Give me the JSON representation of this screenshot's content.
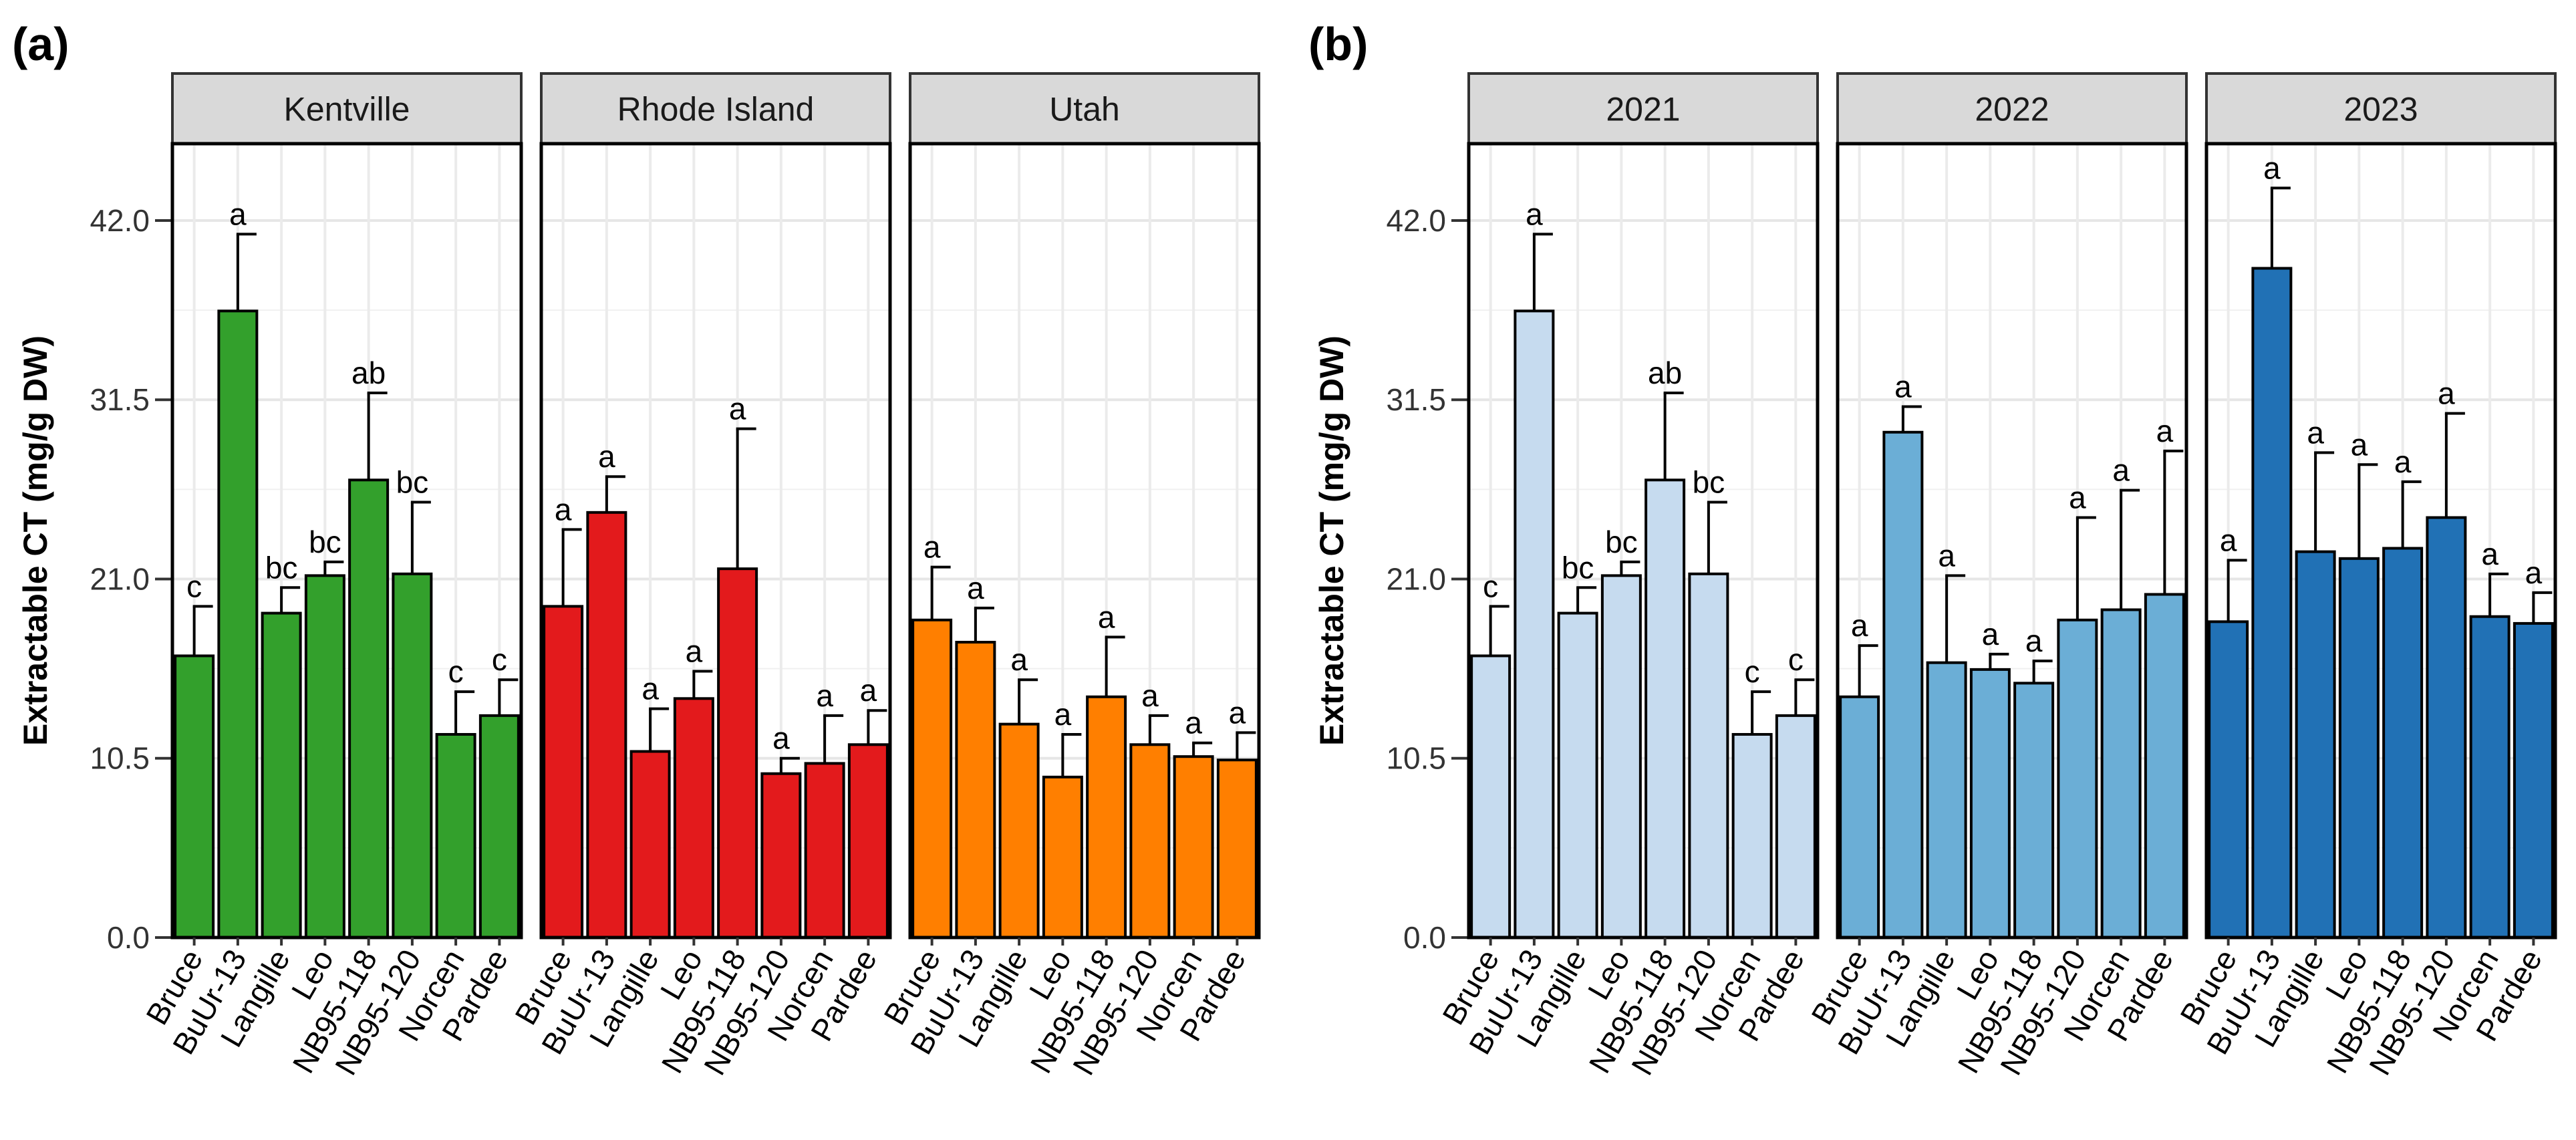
{
  "chart_data": [
    {
      "type": "bar",
      "panel_label": "(a)",
      "ylabel": "Extractable CT (mg/g DW)",
      "ylim": [
        0,
        46.5
      ],
      "yticks": [
        "0.0",
        "10.5",
        "21.0",
        "31.5",
        "42.0"
      ],
      "categories": [
        "Bruce",
        "BuUr-13",
        "Langille",
        "Leo",
        "NB95-118",
        "NB95-120",
        "Norcen",
        "Pardee"
      ],
      "facets": [
        {
          "title": "Kentville",
          "color": "#33a02c",
          "values": [
            16.5,
            36.7,
            19.0,
            21.2,
            26.8,
            21.3,
            11.9,
            13.0
          ],
          "errors": [
            2.9,
            4.5,
            1.5,
            0.8,
            5.1,
            4.2,
            2.5,
            2.1
          ],
          "letters": [
            "c",
            "a",
            "bc",
            "bc",
            "ab",
            "bc",
            "c",
            "c"
          ]
        },
        {
          "title": "Rhode Island",
          "color": "#e31a1c",
          "values": [
            19.4,
            24.9,
            10.9,
            14.0,
            21.6,
            9.6,
            10.2,
            11.3
          ],
          "errors": [
            4.5,
            2.1,
            2.5,
            1.6,
            8.2,
            0.9,
            2.8,
            2.0
          ],
          "letters": [
            "a",
            "a",
            "a",
            "a",
            "a",
            "a",
            "a",
            "a"
          ]
        },
        {
          "title": "Utah",
          "color": "#ff7f00",
          "values": [
            18.6,
            17.3,
            12.5,
            9.4,
            14.1,
            11.3,
            10.6,
            10.4
          ],
          "errors": [
            3.1,
            2.0,
            2.6,
            2.5,
            3.5,
            1.7,
            0.8,
            1.6
          ],
          "letters": [
            "a",
            "a",
            "a",
            "a",
            "a",
            "a",
            "a",
            "a"
          ]
        }
      ]
    },
    {
      "type": "bar",
      "panel_label": "(b)",
      "ylabel": "Extractable CT (mg/g DW)",
      "ylim": [
        0,
        46.5
      ],
      "yticks": [
        "0.0",
        "10.5",
        "21.0",
        "31.5",
        "42.0"
      ],
      "categories": [
        "Bruce",
        "BuUr-13",
        "Langille",
        "Leo",
        "NB95-118",
        "NB95-120",
        "Norcen",
        "Pardee"
      ],
      "facets": [
        {
          "title": "2021",
          "color": "#c6dbef",
          "values": [
            16.5,
            36.7,
            19.0,
            21.2,
            26.8,
            21.3,
            11.9,
            13.0
          ],
          "errors": [
            2.9,
            4.5,
            1.5,
            0.8,
            5.1,
            4.2,
            2.5,
            2.1
          ],
          "letters": [
            "c",
            "a",
            "bc",
            "bc",
            "ab",
            "bc",
            "c",
            "c"
          ]
        },
        {
          "title": "2022",
          "color": "#6baed6",
          "values": [
            14.1,
            29.6,
            16.1,
            15.7,
            14.9,
            18.6,
            19.2,
            20.1
          ],
          "errors": [
            3.0,
            1.5,
            5.1,
            0.9,
            1.3,
            6.0,
            7.0,
            8.4
          ],
          "letters": [
            "a",
            "a",
            "a",
            "a",
            "a",
            "a",
            "a",
            "a"
          ]
        },
        {
          "title": "2023",
          "color": "#2171b5",
          "values": [
            18.5,
            39.2,
            22.6,
            22.2,
            22.8,
            24.6,
            18.8,
            18.4
          ],
          "errors": [
            3.6,
            4.7,
            5.8,
            5.5,
            3.9,
            6.1,
            2.5,
            1.8
          ],
          "letters": [
            "a",
            "a",
            "a",
            "a",
            "a",
            "a",
            "a",
            "a"
          ]
        }
      ]
    }
  ]
}
